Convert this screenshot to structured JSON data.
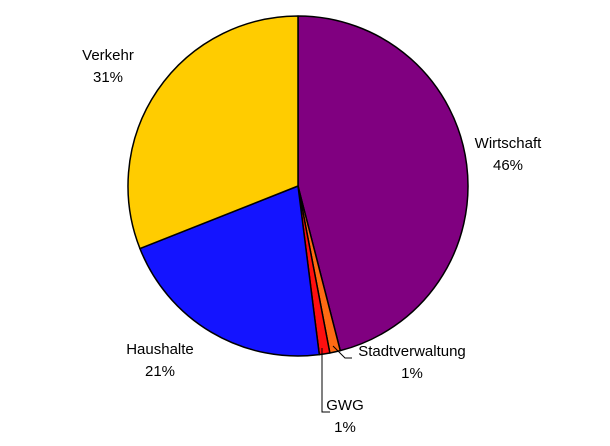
{
  "chart_data": {
    "type": "pie",
    "start_angle_deg": 0,
    "direction": "clockwise",
    "slices": [
      {
        "label": "Wirtschaft",
        "value": 46,
        "percent_label": "46%",
        "color": "#800080"
      },
      {
        "label": "Stadtverwaltung",
        "value": 1,
        "percent_label": "1%",
        "color": "#ff6a13"
      },
      {
        "label": "GWG",
        "value": 1,
        "percent_label": "1%",
        "color": "#ff0f0f"
      },
      {
        "label": "Haushalte",
        "value": 21,
        "percent_label": "21%",
        "color": "#1414ff"
      },
      {
        "label": "Verkehr",
        "value": 31,
        "percent_label": "31%",
        "color": "#ffcc00"
      }
    ],
    "outline_color": "#000000"
  }
}
